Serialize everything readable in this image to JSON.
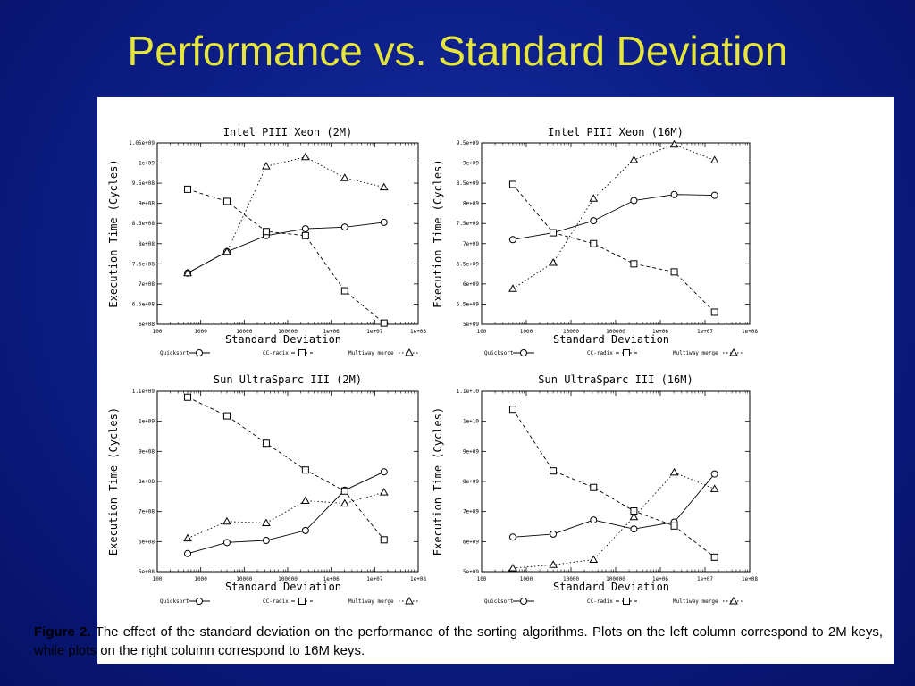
{
  "slide_title": "Performance vs. Standard Deviation",
  "caption": {
    "label": "Figure 2.",
    "text": " The effect of the standard deviation on the performance of the sorting algorithms.  Plots on the left column correspond to 2M keys, while plots on the right column correspond to 16M keys."
  },
  "colors": {
    "background": "#0d1f8a",
    "title": "#e6e63a",
    "panel": "#ffffff"
  },
  "chart_data": [
    {
      "type": "line",
      "title": "Intel PIII Xeon (2M)",
      "xlabel": "Standard Deviation",
      "ylabel": "Execution Time (Cycles)",
      "xscale": "log",
      "xlim": [
        100,
        100000000
      ],
      "xticks": [
        "100",
        "1000",
        "10000",
        "100000",
        "1e+06",
        "1e+07",
        "1e+08"
      ],
      "ylim": [
        600000000,
        1050000000
      ],
      "yticks": [
        "6e+08",
        "6.5e+08",
        "7e+08",
        "7.5e+08",
        "8e+08",
        "8.5e+08",
        "9e+08",
        "9.5e+08",
        "1e+09",
        "1.05e+09"
      ],
      "x": [
        500,
        4000,
        32000,
        256000,
        2048000,
        16384000
      ],
      "series": [
        {
          "name": "Quicksort",
          "marker": "circle",
          "dash": "solid",
          "values": [
            727000000,
            780000000,
            820000000,
            837000000,
            841000000,
            853000000
          ]
        },
        {
          "name": "CC-radix",
          "marker": "square",
          "dash": "dashed",
          "values": [
            935000000,
            905000000,
            830000000,
            820000000,
            683000000,
            603000000
          ]
        },
        {
          "name": "Multiway merge",
          "marker": "triangle",
          "dash": "dotted",
          "values": [
            727000000,
            780000000,
            992000000,
            1015000000,
            963000000,
            940000000
          ]
        }
      ]
    },
    {
      "type": "line",
      "title": "Intel PIII Xeon (16M)",
      "xlabel": "Standard Deviation",
      "ylabel": "Execution Time (Cycles)",
      "xscale": "log",
      "xlim": [
        100,
        100000000
      ],
      "xticks": [
        "100",
        "1000",
        "10000",
        "100000",
        "1e+06",
        "1e+07",
        "1e+08"
      ],
      "ylim": [
        5000000000,
        9500000000
      ],
      "yticks": [
        "5e+09",
        "5.5e+09",
        "6e+09",
        "6.5e+09",
        "7e+09",
        "7.5e+09",
        "8e+09",
        "8.5e+09",
        "9e+09",
        "9.5e+09"
      ],
      "x": [
        500,
        4000,
        32000,
        256000,
        2048000,
        16384000
      ],
      "series": [
        {
          "name": "Quicksort",
          "marker": "circle",
          "dash": "solid",
          "values": [
            7100000000,
            7270000000,
            7570000000,
            8070000000,
            8220000000,
            8200000000
          ]
        },
        {
          "name": "CC-radix",
          "marker": "square",
          "dash": "dashed",
          "values": [
            8470000000,
            7270000000,
            7000000000,
            6500000000,
            6300000000,
            5300000000
          ]
        },
        {
          "name": "Multiway merge",
          "marker": "triangle",
          "dash": "dotted",
          "values": [
            5880000000,
            6530000000,
            8120000000,
            9080000000,
            9460000000,
            9070000000
          ]
        }
      ]
    },
    {
      "type": "line",
      "title": "Sun UltraSparc III (2M)",
      "xlabel": "Standard Deviation",
      "ylabel": "Execution Time (Cycles)",
      "xscale": "log",
      "xlim": [
        100,
        100000000
      ],
      "xticks": [
        "100",
        "1000",
        "10000",
        "100000",
        "1e+06",
        "1e+07",
        "1e+08"
      ],
      "ylim": [
        500000000,
        1100000000
      ],
      "yticks": [
        "5e+08",
        "6e+08",
        "7e+08",
        "8e+08",
        "9e+08",
        "1e+09",
        "1.1e+09"
      ],
      "x": [
        500,
        4000,
        32000,
        256000,
        2048000,
        16384000
      ],
      "series": [
        {
          "name": "Quicksort",
          "marker": "circle",
          "dash": "solid",
          "values": [
            560000000,
            597000000,
            604000000,
            637000000,
            771000000,
            832000000
          ]
        },
        {
          "name": "CC-radix",
          "marker": "square",
          "dash": "dashed",
          "values": [
            1080000000,
            1018000000,
            927000000,
            838000000,
            768000000,
            606000000
          ]
        },
        {
          "name": "Multiway merge",
          "marker": "triangle",
          "dash": "dotted",
          "values": [
            611000000,
            667000000,
            662000000,
            736000000,
            727000000,
            764000000
          ]
        }
      ]
    },
    {
      "type": "line",
      "title": "Sun UltraSparc III (16M)",
      "xlabel": "Standard Deviation",
      "ylabel": "Execution Time (Cycles)",
      "xscale": "log",
      "xlim": [
        100,
        100000000
      ],
      "xticks": [
        "100",
        "1000",
        "10000",
        "100000",
        "1e+06",
        "1e+07",
        "1e+08"
      ],
      "ylim": [
        5000000000,
        11000000000
      ],
      "yticks": [
        "5e+09",
        "6e+09",
        "7e+09",
        "8e+09",
        "9e+09",
        "1e+10",
        "1.1e+10"
      ],
      "x": [
        500,
        4000,
        32000,
        256000,
        2048000,
        16384000
      ],
      "series": [
        {
          "name": "Quicksort",
          "marker": "circle",
          "dash": "solid",
          "values": [
            6150000000,
            6250000000,
            6720000000,
            6420000000,
            6650000000,
            8250000000
          ]
        },
        {
          "name": "CC-radix",
          "marker": "square",
          "dash": "dashed",
          "values": [
            10400000000,
            8350000000,
            7800000000,
            7020000000,
            6520000000,
            5480000000
          ]
        },
        {
          "name": "Multiway merge",
          "marker": "triangle",
          "dash": "dotted",
          "values": [
            5120000000,
            5230000000,
            5400000000,
            6820000000,
            8300000000,
            7750000000
          ]
        }
      ]
    }
  ]
}
